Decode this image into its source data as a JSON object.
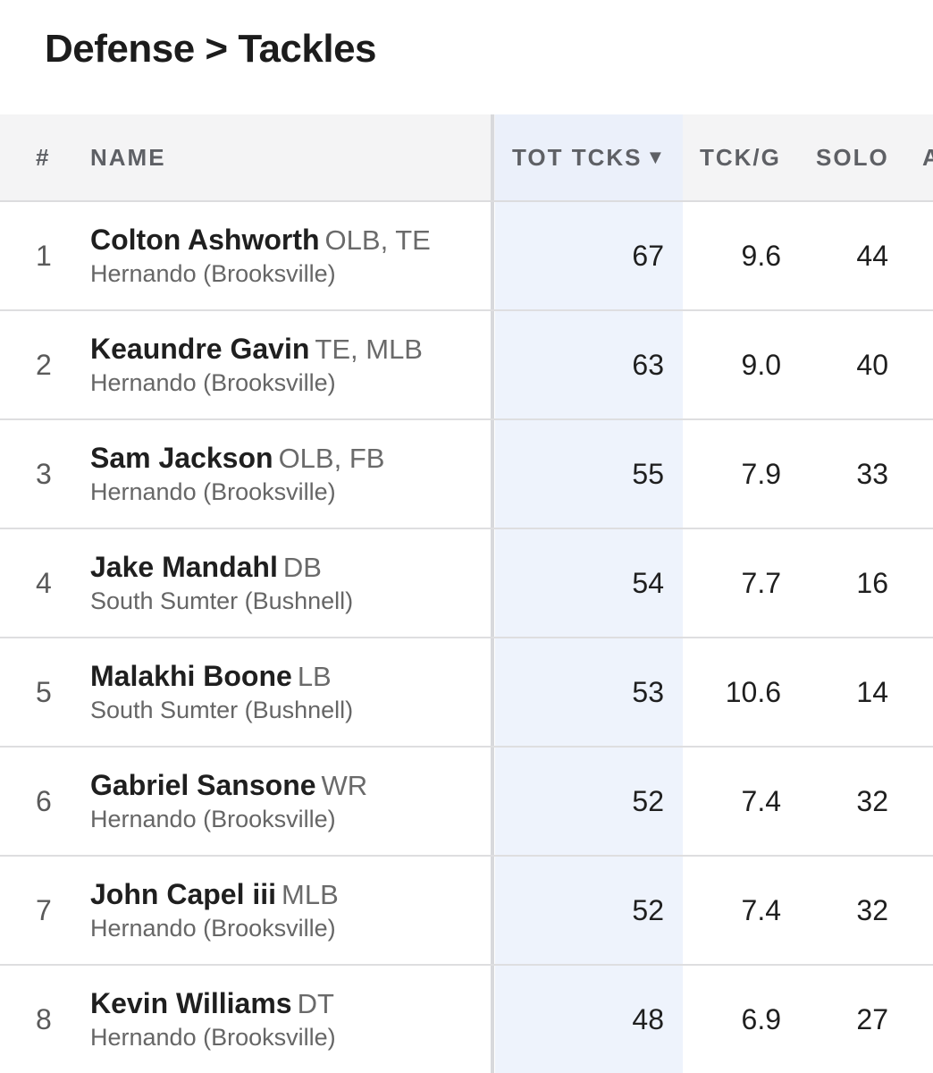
{
  "title": "Defense > Tackles",
  "columns": {
    "rank": "#",
    "name": "NAME",
    "tot_tcks": "TOT TCKS",
    "sort_icon": "▼",
    "tck_per_game": "TCK/G",
    "solo": "SOLO",
    "partial_next": "A"
  },
  "rows": [
    {
      "rank": "1",
      "name": "Colton Ashworth",
      "pos": "OLB, TE",
      "school": "Hernando (Brooksville)",
      "tot": "67",
      "tckg": "9.6",
      "solo": "44"
    },
    {
      "rank": "2",
      "name": "Keaundre Gavin",
      "pos": "TE, MLB",
      "school": "Hernando (Brooksville)",
      "tot": "63",
      "tckg": "9.0",
      "solo": "40"
    },
    {
      "rank": "3",
      "name": "Sam Jackson",
      "pos": "OLB, FB",
      "school": "Hernando (Brooksville)",
      "tot": "55",
      "tckg": "7.9",
      "solo": "33"
    },
    {
      "rank": "4",
      "name": "Jake Mandahl",
      "pos": "DB",
      "school": "South Sumter (Bushnell)",
      "tot": "54",
      "tckg": "7.7",
      "solo": "16"
    },
    {
      "rank": "5",
      "name": "Malakhi Boone",
      "pos": "LB",
      "school": "South Sumter (Bushnell)",
      "tot": "53",
      "tckg": "10.6",
      "solo": "14"
    },
    {
      "rank": "6",
      "name": "Gabriel Sansone",
      "pos": "WR",
      "school": "Hernando (Brooksville)",
      "tot": "52",
      "tckg": "7.4",
      "solo": "32"
    },
    {
      "rank": "7",
      "name": "John Capel iii",
      "pos": "MLB",
      "school": "Hernando (Brooksville)",
      "tot": "52",
      "tckg": "7.4",
      "solo": "32"
    },
    {
      "rank": "8",
      "name": "Kevin Williams",
      "pos": "DT",
      "school": "Hernando (Brooksville)",
      "tot": "48",
      "tckg": "6.9",
      "solo": "27"
    }
  ]
}
